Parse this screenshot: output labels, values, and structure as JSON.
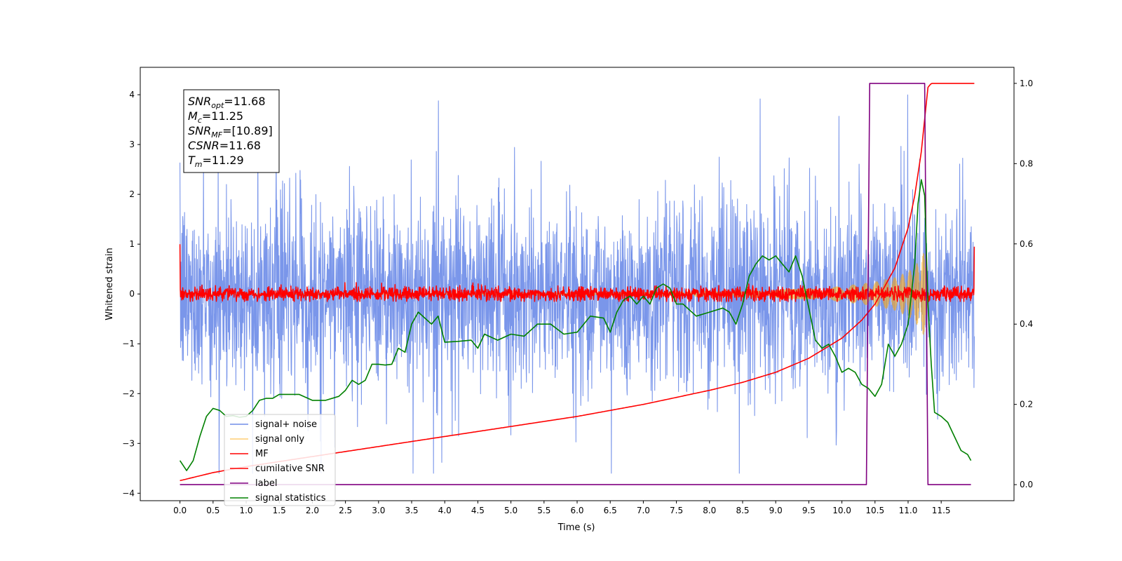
{
  "chart_data": {
    "type": "line",
    "xlabel": "Time (s)",
    "ylabel_left": "Whitened strain",
    "xlim": [
      -0.6,
      12.6
    ],
    "ylim_left": [
      -4.15,
      4.55
    ],
    "ylim_right": [
      -0.04,
      1.04
    ],
    "x_ticks": [
      0.0,
      0.5,
      1.0,
      1.5,
      2.0,
      2.5,
      3.0,
      3.5,
      4.0,
      4.5,
      5.0,
      5.5,
      6.0,
      6.5,
      7.0,
      7.5,
      8.0,
      8.5,
      9.0,
      9.5,
      10.0,
      10.5,
      11.0,
      11.5
    ],
    "x_tick_labels": [
      "0.0",
      "0.5",
      "1.0",
      "1.5",
      "2.0",
      "2.5",
      "3.0",
      "3.5",
      "4.0",
      "4.5",
      "5.0",
      "5.5",
      "6.0",
      "6.5",
      "7.0",
      "7.5",
      "8.0",
      "8.5",
      "9.0",
      "9.5",
      "10.0",
      "10.5",
      "11.0",
      "11.5"
    ],
    "y_left_ticks": [
      -4,
      -3,
      -2,
      -1,
      0,
      1,
      2,
      3,
      4
    ],
    "y_left_tick_labels": [
      "−4",
      "−3",
      "−2",
      "−1",
      "0",
      "1",
      "2",
      "3",
      "4"
    ],
    "y_right_ticks": [
      0.0,
      0.2,
      0.4,
      0.6,
      0.8,
      1.0
    ],
    "y_right_tick_labels": [
      "0.0",
      "0.2",
      "0.4",
      "0.6",
      "0.8",
      "1.0"
    ],
    "grid": false,
    "legend_position": "lower-left",
    "annotation": {
      "lines": [
        {
          "sym": "SNR",
          "sub": "opt",
          "rest": "=11.68"
        },
        {
          "sym": "M",
          "sub": "c",
          "rest": "=11.25"
        },
        {
          "sym": "SNR",
          "sub": "MF",
          "rest": "=[10.89]"
        },
        {
          "sym": "CSNR",
          "sub": "",
          "rest": "=11.68"
        },
        {
          "sym": "T",
          "sub": "m",
          "rest": "=11.29"
        }
      ]
    },
    "series": [
      {
        "name": "signal+ noise",
        "axis": "left",
        "color": "#4169e1",
        "kind": "noise",
        "x_range": [
          0.0,
          12.0
        ],
        "mean": 0.0,
        "std": 0.95,
        "min": -3.6,
        "max": 4.15
      },
      {
        "name": "signal only",
        "axis": "left",
        "color": "#ffa500",
        "kind": "chirp",
        "x_range": [
          0.0,
          11.29
        ],
        "envelope": {
          "x": [
            0.0,
            6.0,
            8.5,
            9.5,
            10.0,
            10.5,
            10.8,
            11.0,
            11.1,
            11.2,
            11.29
          ],
          "amp": [
            0.0,
            0.02,
            0.06,
            0.1,
            0.15,
            0.24,
            0.33,
            0.45,
            0.55,
            0.75,
            0.95
          ]
        }
      },
      {
        "name": "MF",
        "axis": "left",
        "color": "#ff0000",
        "kind": "noise",
        "x_range": [
          0.0,
          12.0
        ],
        "mean": 0.0,
        "std": 0.07,
        "min": -0.15,
        "max": 0.3,
        "edges": [
          {
            "x": 0.0,
            "y": 1.0
          },
          {
            "x": 12.0,
            "y": 0.95
          }
        ]
      },
      {
        "name": "cumilative SNR",
        "axis": "right",
        "color": "#ff0000",
        "x": [
          0.0,
          0.5,
          1.0,
          2.0,
          3.0,
          4.0,
          5.0,
          6.0,
          7.0,
          8.0,
          8.5,
          9.0,
          9.5,
          10.0,
          10.3,
          10.5,
          10.8,
          11.0,
          11.1,
          11.2,
          11.3,
          11.35,
          12.0
        ],
        "y": [
          0.01,
          0.03,
          0.045,
          0.07,
          0.095,
          0.12,
          0.145,
          0.17,
          0.2,
          0.235,
          0.255,
          0.28,
          0.315,
          0.365,
          0.41,
          0.45,
          0.54,
          0.64,
          0.72,
          0.83,
          0.99,
          1.0,
          1.0
        ]
      },
      {
        "name": "label",
        "axis": "right",
        "color": "#800080",
        "x": [
          0.0,
          10.37,
          10.42,
          11.25,
          11.3,
          11.95
        ],
        "y": [
          0.0,
          0.0,
          1.0,
          1.0,
          0.0,
          0.0
        ]
      },
      {
        "name": "signal statistics",
        "axis": "right",
        "color": "#008000",
        "x": [
          0.0,
          0.1,
          0.2,
          0.3,
          0.4,
          0.5,
          0.6,
          0.7,
          0.8,
          0.9,
          1.0,
          1.1,
          1.2,
          1.3,
          1.4,
          1.5,
          1.6,
          1.8,
          2.0,
          2.2,
          2.4,
          2.5,
          2.6,
          2.7,
          2.8,
          2.9,
          3.0,
          3.1,
          3.2,
          3.3,
          3.4,
          3.5,
          3.6,
          3.7,
          3.8,
          3.9,
          4.0,
          4.2,
          4.4,
          4.5,
          4.6,
          4.8,
          5.0,
          5.2,
          5.4,
          5.6,
          5.8,
          6.0,
          6.2,
          6.4,
          6.5,
          6.6,
          6.7,
          6.8,
          6.9,
          7.0,
          7.1,
          7.2,
          7.3,
          7.4,
          7.5,
          7.6,
          7.8,
          8.0,
          8.2,
          8.3,
          8.4,
          8.5,
          8.6,
          8.7,
          8.8,
          8.9,
          9.0,
          9.1,
          9.2,
          9.3,
          9.4,
          9.5,
          9.6,
          9.7,
          9.8,
          9.9,
          10.0,
          10.1,
          10.2,
          10.3,
          10.4,
          10.5,
          10.6,
          10.7,
          10.8,
          10.9,
          11.0,
          11.1,
          11.15,
          11.2,
          11.25,
          11.3,
          11.35,
          11.4,
          11.5,
          11.6,
          11.7,
          11.8,
          11.9,
          11.95
        ],
        "y": [
          0.06,
          0.035,
          0.06,
          0.12,
          0.17,
          0.19,
          0.185,
          0.17,
          0.172,
          0.168,
          0.17,
          0.185,
          0.21,
          0.215,
          0.215,
          0.225,
          0.225,
          0.225,
          0.21,
          0.21,
          0.22,
          0.235,
          0.26,
          0.25,
          0.26,
          0.3,
          0.3,
          0.298,
          0.3,
          0.34,
          0.33,
          0.4,
          0.43,
          0.415,
          0.4,
          0.42,
          0.355,
          0.357,
          0.36,
          0.34,
          0.375,
          0.36,
          0.375,
          0.37,
          0.4,
          0.4,
          0.375,
          0.38,
          0.42,
          0.415,
          0.38,
          0.43,
          0.46,
          0.47,
          0.45,
          0.47,
          0.45,
          0.49,
          0.5,
          0.49,
          0.45,
          0.45,
          0.42,
          0.43,
          0.44,
          0.43,
          0.4,
          0.45,
          0.52,
          0.55,
          0.57,
          0.56,
          0.57,
          0.55,
          0.53,
          0.57,
          0.52,
          0.44,
          0.36,
          0.34,
          0.35,
          0.32,
          0.28,
          0.29,
          0.28,
          0.25,
          0.24,
          0.22,
          0.25,
          0.35,
          0.32,
          0.35,
          0.4,
          0.55,
          0.7,
          0.76,
          0.72,
          0.45,
          0.3,
          0.18,
          0.17,
          0.155,
          0.12,
          0.085,
          0.075,
          0.06
        ]
      }
    ]
  }
}
